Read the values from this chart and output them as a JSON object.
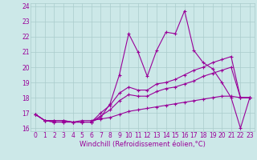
{
  "xlabel": "Windchill (Refroidissement éolien,°C)",
  "bg_color": "#cce8e8",
  "grid_color": "#aacccc",
  "line_color": "#990099",
  "xlim": [
    -0.5,
    23.5
  ],
  "ylim": [
    15.8,
    24.2
  ],
  "xticks": [
    0,
    1,
    2,
    3,
    4,
    5,
    6,
    7,
    8,
    9,
    10,
    11,
    12,
    13,
    14,
    15,
    16,
    17,
    18,
    19,
    20,
    21,
    22,
    23
  ],
  "yticks": [
    16,
    17,
    18,
    19,
    20,
    21,
    22,
    23,
    24
  ],
  "line1_x": [
    0,
    1,
    2,
    3,
    4,
    5,
    6,
    7,
    8,
    9,
    10,
    11,
    12,
    13,
    14,
    15,
    16,
    17,
    18,
    19,
    20,
    21,
    22,
    23
  ],
  "line1_y": [
    16.9,
    16.5,
    16.5,
    16.5,
    16.4,
    16.4,
    16.4,
    16.7,
    17.6,
    19.5,
    22.2,
    21.0,
    19.4,
    21.1,
    22.3,
    22.2,
    23.7,
    21.1,
    20.3,
    19.9,
    19.0,
    18.0,
    16.0,
    18.0
  ],
  "line2_x": [
    0,
    1,
    2,
    3,
    4,
    5,
    6,
    7,
    8,
    9,
    10,
    11,
    12,
    13,
    14,
    15,
    16,
    17,
    18,
    19,
    20,
    21,
    22,
    23
  ],
  "line2_y": [
    16.9,
    16.5,
    16.4,
    16.4,
    16.4,
    16.4,
    16.4,
    17.0,
    17.5,
    18.3,
    18.7,
    18.5,
    18.5,
    18.9,
    19.0,
    19.2,
    19.5,
    19.8,
    20.0,
    20.3,
    20.5,
    20.7,
    18.0,
    18.0
  ],
  "line3_x": [
    0,
    1,
    2,
    3,
    4,
    5,
    6,
    7,
    8,
    9,
    10,
    11,
    12,
    13,
    14,
    15,
    16,
    17,
    18,
    19,
    20,
    21,
    22,
    23
  ],
  "line3_y": [
    16.9,
    16.5,
    16.4,
    16.4,
    16.4,
    16.4,
    16.4,
    16.8,
    17.2,
    17.8,
    18.2,
    18.1,
    18.1,
    18.4,
    18.6,
    18.7,
    18.9,
    19.1,
    19.4,
    19.6,
    19.8,
    20.0,
    18.0,
    18.0
  ],
  "line4_x": [
    0,
    1,
    2,
    3,
    4,
    5,
    6,
    7,
    8,
    9,
    10,
    11,
    12,
    13,
    14,
    15,
    16,
    17,
    18,
    19,
    20,
    21,
    22,
    23
  ],
  "line4_y": [
    16.9,
    16.5,
    16.5,
    16.5,
    16.4,
    16.5,
    16.5,
    16.6,
    16.7,
    16.9,
    17.1,
    17.2,
    17.3,
    17.4,
    17.5,
    17.6,
    17.7,
    17.8,
    17.9,
    18.0,
    18.1,
    18.1,
    18.0,
    18.0
  ],
  "tick_fontsize": 5.5,
  "xlabel_fontsize": 6.0,
  "line_width": 0.8,
  "marker_size": 3.5,
  "marker_ew": 0.8
}
